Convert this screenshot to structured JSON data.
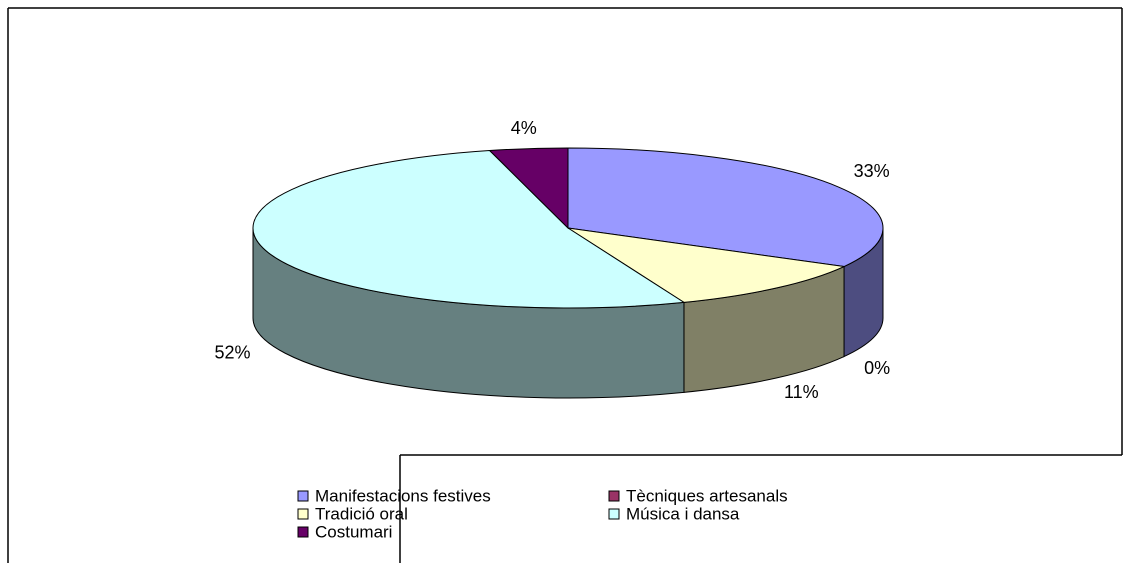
{
  "chart_data": {
    "type": "pie3d",
    "categories": [
      "Manifestacions festives",
      "Tècniques artesanals",
      "Tradició oral",
      "Música i dansa",
      "Costumari"
    ],
    "values": [
      33,
      0,
      11,
      52,
      4
    ],
    "value_labels": [
      "33%",
      "0%",
      "11%",
      "52%",
      "4%"
    ],
    "colors": [
      "#9999ff",
      "#993366",
      "#ffffcc",
      "#ccffff",
      "#660066"
    ],
    "side_colors": [
      "#4d4d80",
      "#4d1933",
      "#808066",
      "#668080",
      "#330033"
    ],
    "legend": "bottom"
  }
}
